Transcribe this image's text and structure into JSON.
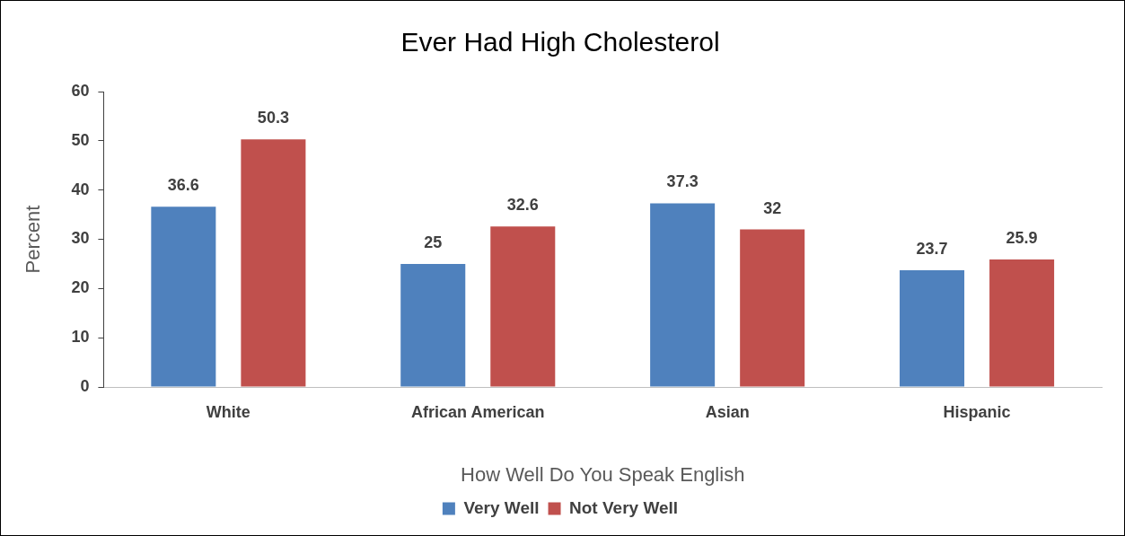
{
  "chart_data": {
    "type": "bar",
    "title": "Ever Had High Cholesterol",
    "xlabel": "How Well Do You Speak English",
    "ylabel": "Percent",
    "categories": [
      "White",
      "African American",
      "Asian",
      "Hispanic"
    ],
    "series": [
      {
        "name": "Very Well",
        "color": "#4f81bd",
        "values": [
          36.6,
          25,
          37.3,
          23.7
        ]
      },
      {
        "name": "Not Very Well",
        "color": "#c0504d",
        "values": [
          50.3,
          32.6,
          32,
          25.9
        ]
      }
    ],
    "ylim": [
      0,
      60
    ],
    "yticks": [
      0,
      10,
      20,
      30,
      40,
      50,
      60
    ],
    "grid": false,
    "legend": "bottom",
    "data_labels": true
  }
}
